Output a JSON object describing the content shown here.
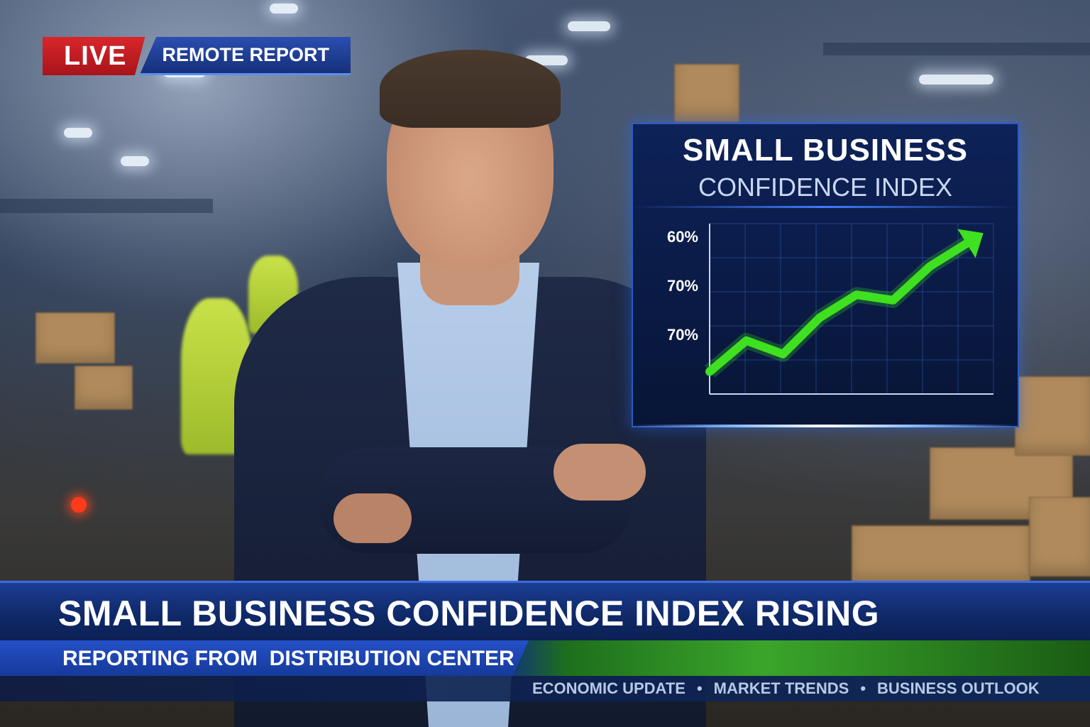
{
  "badge": {
    "live": "LIVE",
    "label": "REMOTE REPORT"
  },
  "panel": {
    "title": "SMALL BUSINESS",
    "subtitle": "CONFIDENCE INDEX",
    "y_tick_labels": [
      "60%",
      "70%",
      "70%"
    ],
    "trend_values": [
      0.05,
      0.28,
      0.18,
      0.45,
      0.62,
      0.58,
      0.83,
      1.0
    ],
    "colors": {
      "line": "#3ee01f",
      "grid": "#2a5aa8",
      "axis": "#c9d6ee"
    }
  },
  "lower_third": {
    "headline": "SMALL BUSINESS CONFIDENCE INDEX RISING",
    "subline": "REPORTING FROM  DISTRIBUTION CENTER",
    "ticker": [
      "ECONOMIC UPDATE",
      "MARKET TRENDS",
      "BUSINESS OUTLOOK"
    ],
    "ticker_separator": "•"
  },
  "colors": {
    "live_red": "#c81e24",
    "bar_blue": "#163a9a",
    "accent_green": "#3aa52a"
  }
}
